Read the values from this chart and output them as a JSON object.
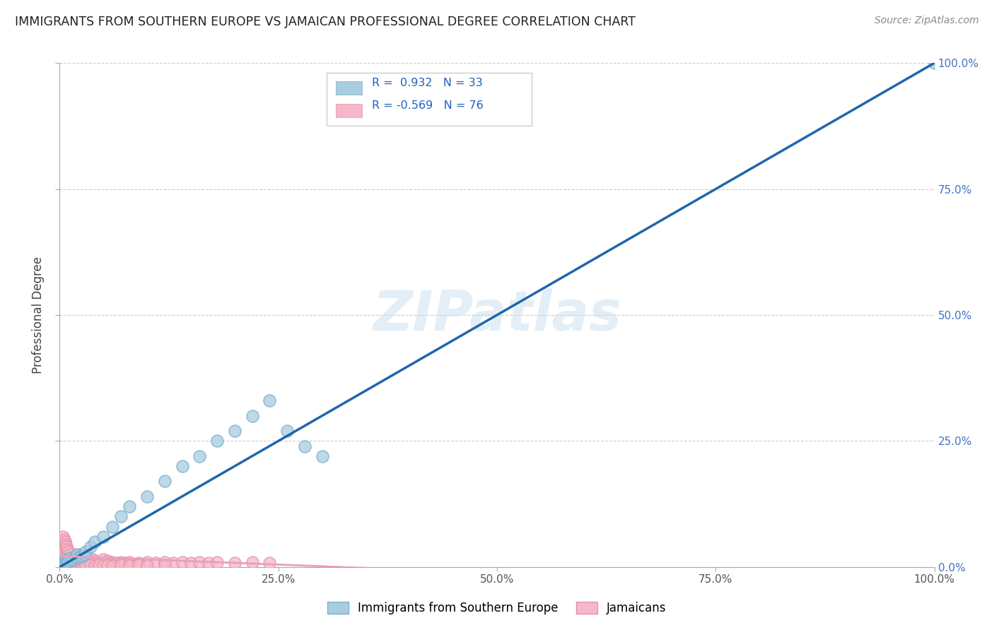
{
  "title": "IMMIGRANTS FROM SOUTHERN EUROPE VS JAMAICAN PROFESSIONAL DEGREE CORRELATION CHART",
  "source": "Source: ZipAtlas.com",
  "ylabel": "Professional Degree",
  "xlim": [
    0,
    1.0
  ],
  "ylim": [
    0,
    1.0
  ],
  "xtick_vals": [
    0.0,
    0.25,
    0.5,
    0.75,
    1.0
  ],
  "xtick_labels": [
    "0.0%",
    "25.0%",
    "50.0%",
    "75.0%",
    "100.0%"
  ],
  "ytick_vals": [
    0.0,
    0.25,
    0.5,
    0.75,
    1.0
  ],
  "ytick_labels_right": [
    "0.0%",
    "25.0%",
    "50.0%",
    "75.0%",
    "100.0%"
  ],
  "blue_fill_color": "#a8cce0",
  "blue_edge_color": "#7ab0d0",
  "pink_fill_color": "#f5b8c8",
  "pink_edge_color": "#e890a8",
  "blue_line_color": "#2166ac",
  "pink_line_color": "#e8a0b8",
  "right_axis_color": "#4472c4",
  "r_blue": 0.932,
  "n_blue": 33,
  "r_pink": -0.569,
  "n_pink": 76,
  "legend_label_blue": "Immigrants from Southern Europe",
  "legend_label_pink": "Jamaicans",
  "watermark": "ZIPatlas",
  "blue_scatter_x": [
    0.003,
    0.005,
    0.006,
    0.007,
    0.008,
    0.009,
    0.01,
    0.012,
    0.015,
    0.018,
    0.02,
    0.022,
    0.025,
    0.028,
    0.03,
    0.035,
    0.04,
    0.05,
    0.06,
    0.07,
    0.08,
    0.1,
    0.12,
    0.14,
    0.16,
    0.18,
    0.2,
    0.22,
    0.24,
    0.26,
    0.28,
    0.3,
    1.0
  ],
  "blue_scatter_y": [
    0.005,
    0.01,
    0.008,
    0.012,
    0.015,
    0.01,
    0.012,
    0.018,
    0.015,
    0.02,
    0.025,
    0.02,
    0.022,
    0.025,
    0.03,
    0.04,
    0.05,
    0.06,
    0.08,
    0.1,
    0.12,
    0.14,
    0.17,
    0.2,
    0.22,
    0.25,
    0.27,
    0.3,
    0.33,
    0.27,
    0.24,
    0.22,
    1.0
  ],
  "pink_scatter_x": [
    0.002,
    0.003,
    0.004,
    0.005,
    0.006,
    0.007,
    0.008,
    0.009,
    0.01,
    0.011,
    0.012,
    0.013,
    0.014,
    0.015,
    0.016,
    0.017,
    0.018,
    0.019,
    0.02,
    0.021,
    0.022,
    0.023,
    0.025,
    0.027,
    0.03,
    0.032,
    0.035,
    0.038,
    0.04,
    0.045,
    0.05,
    0.055,
    0.06,
    0.065,
    0.07,
    0.075,
    0.08,
    0.09,
    0.1,
    0.11,
    0.12,
    0.13,
    0.14,
    0.15,
    0.16,
    0.17,
    0.18,
    0.2,
    0.22,
    0.24,
    0.004,
    0.005,
    0.006,
    0.007,
    0.008,
    0.009,
    0.01,
    0.012,
    0.015,
    0.018,
    0.02,
    0.022,
    0.025,
    0.028,
    0.03,
    0.035,
    0.04,
    0.045,
    0.05,
    0.055,
    0.06,
    0.07,
    0.08,
    0.09,
    0.1,
    0.12
  ],
  "pink_scatter_y": [
    0.04,
    0.035,
    0.03,
    0.025,
    0.02,
    0.015,
    0.012,
    0.01,
    0.015,
    0.012,
    0.018,
    0.015,
    0.02,
    0.025,
    0.015,
    0.012,
    0.01,
    0.015,
    0.018,
    0.02,
    0.025,
    0.015,
    0.012,
    0.01,
    0.015,
    0.012,
    0.01,
    0.015,
    0.012,
    0.01,
    0.015,
    0.012,
    0.01,
    0.008,
    0.01,
    0.008,
    0.01,
    0.008,
    0.01,
    0.008,
    0.01,
    0.008,
    0.01,
    0.008,
    0.01,
    0.008,
    0.01,
    0.008,
    0.01,
    0.008,
    0.06,
    0.055,
    0.05,
    0.045,
    0.04,
    0.035,
    0.03,
    0.025,
    0.02,
    0.015,
    0.012,
    0.01,
    0.008,
    0.006,
    0.005,
    0.004,
    0.003,
    0.004,
    0.003,
    0.004,
    0.003,
    0.004,
    0.003,
    0.004,
    0.003,
    0.004
  ]
}
